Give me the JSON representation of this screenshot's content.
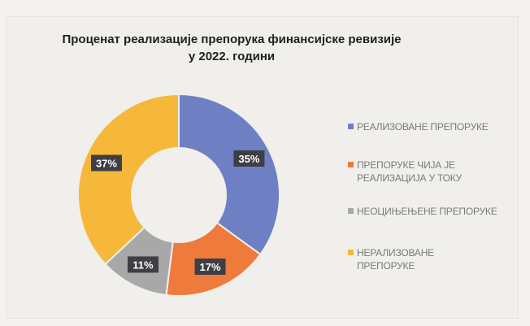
{
  "chart_data": {
    "type": "pie",
    "donut": true,
    "title": [
      "Проценат реализације препорука финансијске ревизије",
      "у 2022. години"
    ],
    "categories": [
      "РЕАЛИЗОВАНЕ ПРЕПОРУКЕ",
      "ПРЕПОРУКЕ ЧИЈА ЈЕ РЕАЛИЗАЦИЈА У ТОКУ",
      "НЕОЦИЊЕЊЕНЕ ПРЕПОРУКЕ",
      "НЕРАЛИЗОВАНЕ ПРЕПОРУКЕ"
    ],
    "values": [
      35,
      17,
      11,
      37
    ],
    "data_labels": [
      "35%",
      "17%",
      "11%",
      "37%"
    ],
    "colors": [
      "#6f7fc4",
      "#ee7a3c",
      "#a8a8a8",
      "#f6b83a"
    ],
    "legend_position": "right"
  }
}
